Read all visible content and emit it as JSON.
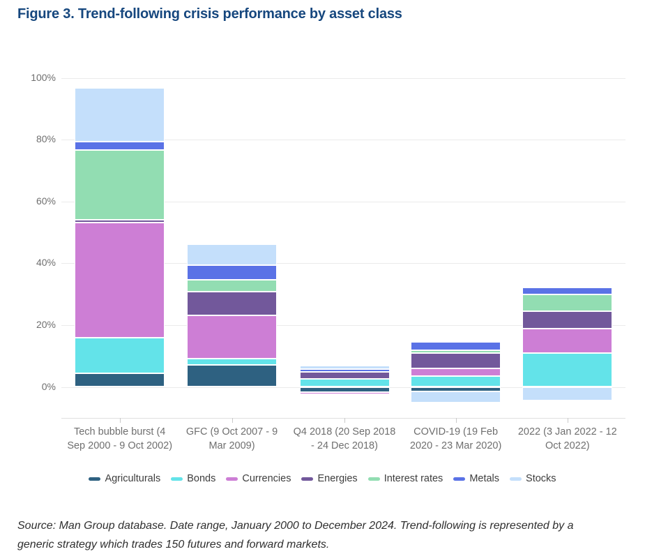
{
  "figure": {
    "title": "Figure 3. Trend-following crisis performance by asset class",
    "source_note": "Source: Man Group database. Date range, January 2000 to December 2024. Trend-following is represented by a generic strategy which trades 150 futures and forward markets."
  },
  "colors": {
    "title_text": "#16477e",
    "axis_text": "#6f6f6f",
    "legend_text": "#3d3d3d",
    "source_text": "#2f2f2f",
    "gridline": "#ebebeb",
    "axis_line": "#e0e0e0",
    "tick_mark": "#c9c9c9"
  },
  "chart_data": {
    "type": "bar",
    "stacked": true,
    "title": "Figure 3. Trend-following crisis performance by asset class",
    "unit": "%",
    "categories": [
      "Tech bubble burst (4 Sep 2000 - 9 Oct 2002)",
      "GFC (9 Oct 2007 - 9 Mar 2009)",
      "Q4 2018 (20 Sep 2018 - 24 Dec 2018)",
      "COVID-19 (19 Feb 2020 - 23 Mar 2020)",
      "2022 (3 Jan 2022 - 12 Oct 2022)"
    ],
    "series": [
      {
        "name": "Agriculturals",
        "color": "#2e6181",
        "values": [
          4.5,
          7.0,
          -1.6,
          -1.5,
          0
        ]
      },
      {
        "name": "Bonds",
        "color": "#63e3e9",
        "values": [
          11.4,
          2.2,
          2.5,
          3.6,
          10.9
        ]
      },
      {
        "name": "Currencies",
        "color": "#cd7ed5",
        "values": [
          37.3,
          13.9,
          -0.8,
          2.4,
          7.9
        ]
      },
      {
        "name": "Energies",
        "color": "#72589b",
        "values": [
          0.9,
          7.7,
          2.4,
          5.0,
          5.7
        ]
      },
      {
        "name": "Interest rates",
        "color": "#92ddb2",
        "values": [
          22.6,
          3.8,
          0,
          0.8,
          5.5
        ]
      },
      {
        "name": "Metals",
        "color": "#5a72e6",
        "values": [
          2.7,
          4.9,
          0.9,
          2.8,
          2.2
        ]
      },
      {
        "name": "Stocks",
        "color": "#c4dffb",
        "values": [
          17.4,
          6.7,
          1.1,
          -3.6,
          -4.4
        ]
      }
    ],
    "bar_totals_top": [
      96.8,
      46.2,
      6.9,
      14.6,
      32.2
    ],
    "y_ticks": [
      0,
      20,
      40,
      60,
      80,
      100
    ],
    "y_tick_suffix": "%",
    "ylim": [
      -10,
      104
    ],
    "grid": true,
    "legend_position": "bottom"
  }
}
